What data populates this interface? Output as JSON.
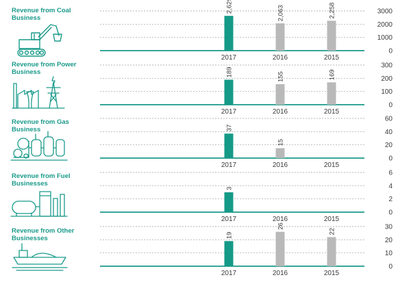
{
  "colors": {
    "accent": "#1a9a8a",
    "highlight_bar": "#159a88",
    "other_bar": "#b9b9b9",
    "baseline": "#1a9a8a",
    "grid": "#9a9a9a"
  },
  "panels": [
    {
      "title": "Revenue from Coal Business",
      "icon": "excavator-icon"
    },
    {
      "title": "Revenue from Power Business",
      "icon": "power-plant-icon"
    },
    {
      "title": "Revenue from Gas Business",
      "icon": "gas-plant-icon"
    },
    {
      "title": "Revenue from Fuel Businesses",
      "icon": "fuel-storage-icon"
    },
    {
      "title": "Revenue from Other Businesses",
      "icon": "ship-icon"
    }
  ],
  "chart_data": [
    {
      "type": "bar",
      "title": "Revenue from Coal Business",
      "categories": [
        "2017",
        "2016",
        "2015"
      ],
      "values": [
        2629,
        2063,
        2258
      ],
      "value_labels": [
        "2,629",
        "2,063",
        "2,258"
      ],
      "ylim": [
        0,
        3000
      ],
      "yticks": [
        "0",
        "1000",
        "2000",
        "3000"
      ],
      "highlight": "2017",
      "grid": true
    },
    {
      "type": "bar",
      "title": "Revenue from Power Business",
      "categories": [
        "2017",
        "2016",
        "2015"
      ],
      "values": [
        189,
        155,
        169
      ],
      "value_labels": [
        "189",
        "155",
        "169"
      ],
      "ylim": [
        0,
        300
      ],
      "yticks": [
        "0",
        "100",
        "200",
        "300"
      ],
      "highlight": "2017",
      "grid": true
    },
    {
      "type": "bar",
      "title": "Revenue from Gas Business",
      "categories": [
        "2017",
        "2016",
        "2015"
      ],
      "values": [
        37,
        15,
        0
      ],
      "value_labels": [
        "37",
        "15",
        ""
      ],
      "ylim": [
        0,
        60
      ],
      "yticks": [
        "0",
        "20",
        "40",
        "60"
      ],
      "highlight": "2017",
      "grid": true
    },
    {
      "type": "bar",
      "title": "Revenue from Fuel Businesses",
      "categories": [
        "2017",
        "2016",
        "2015"
      ],
      "values": [
        3,
        0,
        0
      ],
      "value_labels": [
        "3",
        "",
        ""
      ],
      "ylim": [
        0,
        6
      ],
      "yticks": [
        "0",
        "2",
        "4",
        "6"
      ],
      "highlight": "2017",
      "grid": true
    },
    {
      "type": "bar",
      "title": "Revenue from Other Businesses",
      "categories": [
        "2017",
        "2016",
        "2015"
      ],
      "values": [
        19,
        26,
        22
      ],
      "value_labels": [
        "19",
        "26",
        "22"
      ],
      "ylim": [
        0,
        30
      ],
      "yticks": [
        "0",
        "10",
        "20",
        "30"
      ],
      "highlight": "2017",
      "grid": true
    }
  ]
}
